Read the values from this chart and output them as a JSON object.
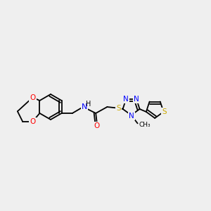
{
  "bg_color": "#efefef",
  "bond_color": "#000000",
  "atom_colors": {
    "O": "#ff0000",
    "N": "#0000ff",
    "S": "#ccaa00",
    "C": "#000000",
    "H": "#000000"
  },
  "font_size": 7.5,
  "bond_width": 1.3
}
